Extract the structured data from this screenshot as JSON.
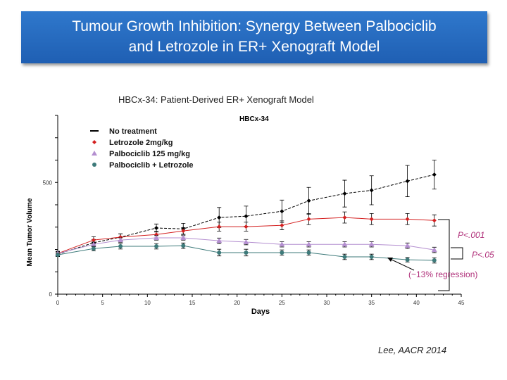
{
  "slide_title_line1": "Tumour Growth Inhibition: Synergy Between Palbociclib",
  "slide_title_line2": "and Letrozole in ER+ Xenograft Model",
  "citation": "Lee, AACR 2014",
  "chart_data": {
    "type": "line",
    "title": "HBCx-34: Patient-Derived ER+ Xenograft Model",
    "subtitle": "HBCx-34",
    "xlabel": "Days",
    "ylabel": "Mean Tumor Volume",
    "xlim": [
      0,
      45
    ],
    "ylim": [
      0,
      800
    ],
    "x_ticks": [
      "0",
      "5",
      "10",
      "15",
      "20",
      "25",
      "30",
      "35",
      "40",
      "45"
    ],
    "y_ticks": [
      "0",
      "500"
    ],
    "legend_position": "top-left",
    "x": [
      0,
      4,
      7,
      11,
      14,
      18,
      21,
      25,
      28,
      32,
      35,
      39,
      42
    ],
    "series": [
      {
        "name": "No treatment",
        "color": "#000000",
        "marker": "diamond",
        "values": [
          179,
          230,
          255,
          296,
          292,
          343,
          349,
          371,
          418,
          450,
          465,
          506,
          535
        ],
        "error": [
          10,
          15,
          15,
          18,
          25,
          45,
          45,
          50,
          60,
          60,
          65,
          70,
          65
        ]
      },
      {
        "name": "Letrozole 2mg/kg",
        "color": "#d42020",
        "marker": "diamond",
        "values": [
          182,
          242,
          255,
          267,
          283,
          302,
          302,
          308,
          336,
          343,
          336,
          336,
          330
        ],
        "error": [
          10,
          15,
          15,
          15,
          15,
          20,
          20,
          20,
          25,
          25,
          25,
          25,
          25
        ]
      },
      {
        "name": "Palbociclib 125 mg/kg",
        "color": "#b48fd0",
        "marker": "triangle",
        "values": [
          182,
          223,
          242,
          252,
          252,
          239,
          233,
          223,
          223,
          223,
          223,
          217,
          198
        ],
        "error": [
          8,
          10,
          10,
          10,
          10,
          12,
          12,
          12,
          12,
          12,
          12,
          12,
          12
        ]
      },
      {
        "name": "Palbociclib + Letrozole",
        "color": "#3d7a7a",
        "marker": "circle",
        "values": [
          176,
          204,
          214,
          214,
          217,
          186,
          186,
          186,
          186,
          167,
          167,
          154,
          151
        ],
        "error": [
          8,
          10,
          12,
          12,
          12,
          15,
          15,
          12,
          12,
          12,
          12,
          10,
          12
        ]
      }
    ],
    "annotations": {
      "p1": "P<.001",
      "p2": "P<.05",
      "regression": "(~13% regression)"
    },
    "annotation_color": "#b0307a"
  }
}
